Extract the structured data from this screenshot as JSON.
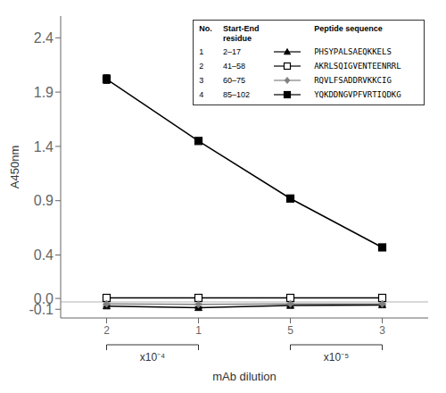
{
  "chart_data": {
    "type": "line",
    "xlabel": "mAb dilution",
    "ylabel": "A450nm",
    "categories": [
      "2",
      "1",
      "5",
      "3"
    ],
    "ylim": [
      -0.18,
      2.6
    ],
    "yticks": [
      -0.1,
      {
        "value": 0,
        "label": "0.0"
      },
      0.4,
      0.9,
      1.4,
      1.9,
      2.4
    ],
    "grid": false,
    "legend": "upper right",
    "legend_header": [
      [
        "No."
      ],
      [
        "Start-End",
        "residue"
      ],
      [
        "Peptide sequence"
      ]
    ],
    "series": [
      {
        "name": "1",
        "residue": "2–17",
        "sequence": "PHSYPALSAEQKKELS",
        "color": "black",
        "marker": "triangle",
        "values": [
          -0.07,
          -0.085,
          -0.065,
          -0.06
        ],
        "errors": [
          0.008,
          0.008,
          0.008,
          0.008
        ]
      },
      {
        "name": "2",
        "residue": "41–58",
        "sequence": "AKRLSQIGVENTEENRRL",
        "color": "black",
        "marker": "open_square",
        "values": [
          0.005,
          0.005,
          0.005,
          0.005
        ],
        "errors": [
          0.008,
          0.008,
          0.008,
          0.008
        ]
      },
      {
        "name": "3",
        "residue": "60–75",
        "sequence": "RQVLFSADDRVKKCIG",
        "color": "gray",
        "marker": "diamond",
        "values": [
          -0.05,
          -0.055,
          -0.05,
          -0.05
        ],
        "errors": [
          0.008,
          0.008,
          0.008,
          0.008
        ]
      },
      {
        "name": "4",
        "residue": "85–102",
        "sequence": "YQKDDNGVPFVRTIQDKG",
        "color": "black",
        "marker": "square",
        "values": [
          2.02,
          1.45,
          0.92,
          0.47
        ],
        "errors": [
          0.04,
          0.02,
          0.02,
          0.02
        ]
      }
    ],
    "reference_line": {
      "y": -0.032,
      "color": "gray"
    },
    "annotations": [
      {
        "text": "x10⁻⁴",
        "categories": [
          "2",
          "1"
        ]
      },
      {
        "text": "x10⁻⁵",
        "categories": [
          "5",
          "3"
        ]
      }
    ]
  }
}
